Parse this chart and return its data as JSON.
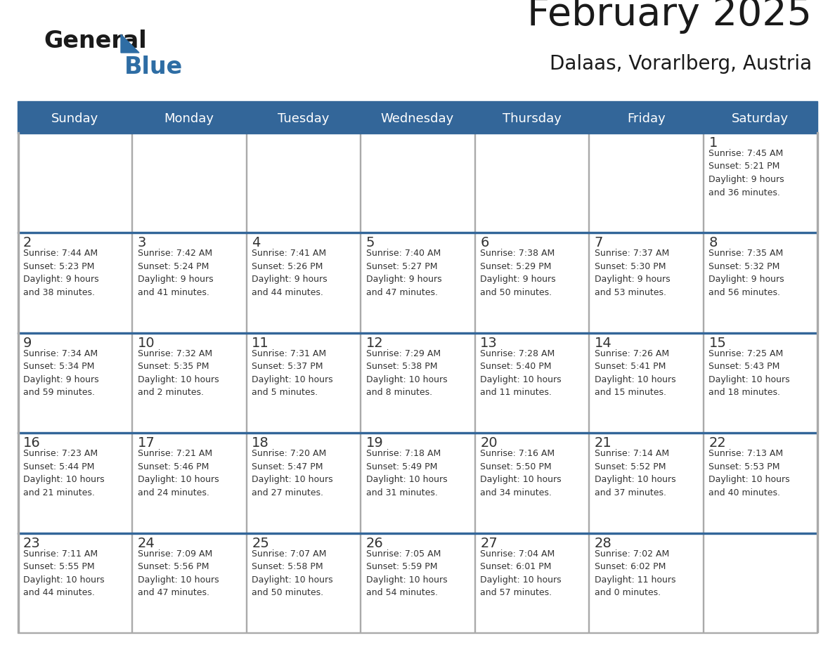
{
  "title": "February 2025",
  "subtitle": "Dalaas, Vorarlberg, Austria",
  "days_of_week": [
    "Sunday",
    "Monday",
    "Tuesday",
    "Wednesday",
    "Thursday",
    "Friday",
    "Saturday"
  ],
  "header_bg": "#336699",
  "header_text": "#FFFFFF",
  "cell_bg": "#FFFFFF",
  "cell_bg_last_row": "#F0F0F0",
  "cell_border_color": "#AAAAAA",
  "row_top_border_color": "#336699",
  "day_number_color": "#333333",
  "info_text_color": "#333333",
  "title_color": "#1a1a1a",
  "logo_general_color": "#1a1a1a",
  "logo_blue_color": "#2E6DA4",
  "separator_color": "#336699",
  "calendar_data": [
    [
      null,
      null,
      null,
      null,
      null,
      null,
      {
        "day": "1",
        "sunrise": "7:45 AM",
        "sunset": "5:21 PM",
        "daylight": "9 hours\nand 36 minutes."
      }
    ],
    [
      {
        "day": "2",
        "sunrise": "7:44 AM",
        "sunset": "5:23 PM",
        "daylight": "9 hours\nand 38 minutes."
      },
      {
        "day": "3",
        "sunrise": "7:42 AM",
        "sunset": "5:24 PM",
        "daylight": "9 hours\nand 41 minutes."
      },
      {
        "day": "4",
        "sunrise": "7:41 AM",
        "sunset": "5:26 PM",
        "daylight": "9 hours\nand 44 minutes."
      },
      {
        "day": "5",
        "sunrise": "7:40 AM",
        "sunset": "5:27 PM",
        "daylight": "9 hours\nand 47 minutes."
      },
      {
        "day": "6",
        "sunrise": "7:38 AM",
        "sunset": "5:29 PM",
        "daylight": "9 hours\nand 50 minutes."
      },
      {
        "day": "7",
        "sunrise": "7:37 AM",
        "sunset": "5:30 PM",
        "daylight": "9 hours\nand 53 minutes."
      },
      {
        "day": "8",
        "sunrise": "7:35 AM",
        "sunset": "5:32 PM",
        "daylight": "9 hours\nand 56 minutes."
      }
    ],
    [
      {
        "day": "9",
        "sunrise": "7:34 AM",
        "sunset": "5:34 PM",
        "daylight": "9 hours\nand 59 minutes."
      },
      {
        "day": "10",
        "sunrise": "7:32 AM",
        "sunset": "5:35 PM",
        "daylight": "10 hours\nand 2 minutes."
      },
      {
        "day": "11",
        "sunrise": "7:31 AM",
        "sunset": "5:37 PM",
        "daylight": "10 hours\nand 5 minutes."
      },
      {
        "day": "12",
        "sunrise": "7:29 AM",
        "sunset": "5:38 PM",
        "daylight": "10 hours\nand 8 minutes."
      },
      {
        "day": "13",
        "sunrise": "7:28 AM",
        "sunset": "5:40 PM",
        "daylight": "10 hours\nand 11 minutes."
      },
      {
        "day": "14",
        "sunrise": "7:26 AM",
        "sunset": "5:41 PM",
        "daylight": "10 hours\nand 15 minutes."
      },
      {
        "day": "15",
        "sunrise": "7:25 AM",
        "sunset": "5:43 PM",
        "daylight": "10 hours\nand 18 minutes."
      }
    ],
    [
      {
        "day": "16",
        "sunrise": "7:23 AM",
        "sunset": "5:44 PM",
        "daylight": "10 hours\nand 21 minutes."
      },
      {
        "day": "17",
        "sunrise": "7:21 AM",
        "sunset": "5:46 PM",
        "daylight": "10 hours\nand 24 minutes."
      },
      {
        "day": "18",
        "sunrise": "7:20 AM",
        "sunset": "5:47 PM",
        "daylight": "10 hours\nand 27 minutes."
      },
      {
        "day": "19",
        "sunrise": "7:18 AM",
        "sunset": "5:49 PM",
        "daylight": "10 hours\nand 31 minutes."
      },
      {
        "day": "20",
        "sunrise": "7:16 AM",
        "sunset": "5:50 PM",
        "daylight": "10 hours\nand 34 minutes."
      },
      {
        "day": "21",
        "sunrise": "7:14 AM",
        "sunset": "5:52 PM",
        "daylight": "10 hours\nand 37 minutes."
      },
      {
        "day": "22",
        "sunrise": "7:13 AM",
        "sunset": "5:53 PM",
        "daylight": "10 hours\nand 40 minutes."
      }
    ],
    [
      {
        "day": "23",
        "sunrise": "7:11 AM",
        "sunset": "5:55 PM",
        "daylight": "10 hours\nand 44 minutes."
      },
      {
        "day": "24",
        "sunrise": "7:09 AM",
        "sunset": "5:56 PM",
        "daylight": "10 hours\nand 47 minutes."
      },
      {
        "day": "25",
        "sunrise": "7:07 AM",
        "sunset": "5:58 PM",
        "daylight": "10 hours\nand 50 minutes."
      },
      {
        "day": "26",
        "sunrise": "7:05 AM",
        "sunset": "5:59 PM",
        "daylight": "10 hours\nand 54 minutes."
      },
      {
        "day": "27",
        "sunrise": "7:04 AM",
        "sunset": "6:01 PM",
        "daylight": "10 hours\nand 57 minutes."
      },
      {
        "day": "28",
        "sunrise": "7:02 AM",
        "sunset": "6:02 PM",
        "daylight": "11 hours\nand 0 minutes."
      },
      null
    ]
  ]
}
